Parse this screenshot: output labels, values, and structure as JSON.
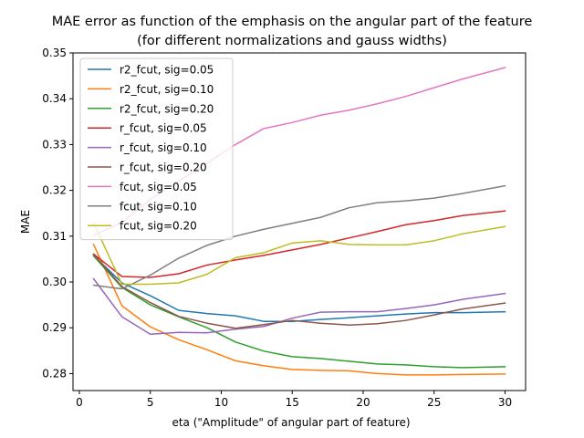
{
  "chart_data": {
    "type": "line",
    "title_lines": [
      "MAE error as function of the emphasis on the angular part of the feature",
      "(for different normalizations and gauss widths)"
    ],
    "xlabel": "eta (\"Amplitude\" of angular part of feature)",
    "ylabel": "MAE",
    "xlim": [
      -0.45,
      31.45
    ],
    "ylim": [
      0.2763,
      0.35
    ],
    "xticks": [
      0,
      5,
      10,
      15,
      20,
      25,
      30
    ],
    "xtick_labels": [
      "0",
      "5",
      "10",
      "15",
      "20",
      "25",
      "30"
    ],
    "yticks": [
      0.28,
      0.29,
      0.3,
      0.31,
      0.32,
      0.33,
      0.34,
      0.35
    ],
    "ytick_labels": [
      "0.28",
      "0.29",
      "0.30",
      "0.31",
      "0.32",
      "0.33",
      "0.34",
      "0.35"
    ],
    "grid": false,
    "legend_position": "upper-left",
    "x": [
      1,
      3,
      5,
      7,
      9,
      11,
      13,
      15,
      17,
      19,
      21,
      23,
      25,
      27,
      30
    ],
    "series": [
      {
        "name": "r2_fcut, sig=0.05",
        "color": "#1f77b4",
        "values": [
          0.3058,
          0.2998,
          0.297,
          0.2938,
          0.2931,
          0.2926,
          0.2914,
          0.2914,
          0.2918,
          0.2922,
          0.2926,
          0.293,
          0.2933,
          0.2933,
          0.2935
        ]
      },
      {
        "name": "r2_fcut, sig=0.10",
        "color": "#ff7f0e",
        "values": [
          0.3082,
          0.2948,
          0.2902,
          0.2874,
          0.2852,
          0.2828,
          0.2817,
          0.2809,
          0.2807,
          0.2806,
          0.28,
          0.2797,
          0.2797,
          0.2798,
          0.2799
        ]
      },
      {
        "name": "r2_fcut, sig=0.20",
        "color": "#2ca02c",
        "values": [
          0.3057,
          0.2988,
          0.295,
          0.2924,
          0.29,
          0.2869,
          0.2849,
          0.2837,
          0.2833,
          0.2827,
          0.2821,
          0.2819,
          0.2815,
          0.2813,
          0.2815
        ]
      },
      {
        "name": "r_fcut, sig=0.05",
        "color": "#d62728",
        "values": [
          0.3061,
          0.3012,
          0.301,
          0.3018,
          0.3037,
          0.3048,
          0.3058,
          0.307,
          0.3082,
          0.3096,
          0.311,
          0.3125,
          0.3134,
          0.3145,
          0.3155
        ]
      },
      {
        "name": "r_fcut, sig=0.10",
        "color": "#9467bd",
        "values": [
          0.3007,
          0.2924,
          0.2886,
          0.289,
          0.2889,
          0.2897,
          0.2903,
          0.2921,
          0.2934,
          0.2935,
          0.2935,
          0.2942,
          0.295,
          0.2962,
          0.2975
        ]
      },
      {
        "name": "r_fcut, sig=0.20",
        "color": "#8c564b",
        "values": [
          0.306,
          0.299,
          0.2955,
          0.2925,
          0.291,
          0.2899,
          0.2907,
          0.2916,
          0.291,
          0.2906,
          0.2909,
          0.2916,
          0.2928,
          0.2941,
          0.2954
        ]
      },
      {
        "name": "fcut, sig=0.05",
        "color": "#e377c2",
        "values": [
          0.3102,
          0.313,
          0.318,
          0.322,
          0.326,
          0.33,
          0.3335,
          0.3348,
          0.3364,
          0.3375,
          0.3389,
          0.3405,
          0.3424,
          0.3443,
          0.3468
        ]
      },
      {
        "name": "fcut, sig=0.10",
        "color": "#7f7f7f",
        "values": [
          0.2993,
          0.2985,
          0.3015,
          0.3052,
          0.308,
          0.31,
          0.3115,
          0.3128,
          0.3141,
          0.3162,
          0.3173,
          0.3177,
          0.3183,
          0.3193,
          0.321
        ]
      },
      {
        "name": "fcut, sig=0.20",
        "color": "#bcbd22",
        "values": [
          0.3129,
          0.2995,
          0.2995,
          0.2998,
          0.3017,
          0.3053,
          0.3064,
          0.3085,
          0.309,
          0.3082,
          0.3081,
          0.3081,
          0.309,
          0.3105,
          0.3121
        ]
      }
    ]
  }
}
